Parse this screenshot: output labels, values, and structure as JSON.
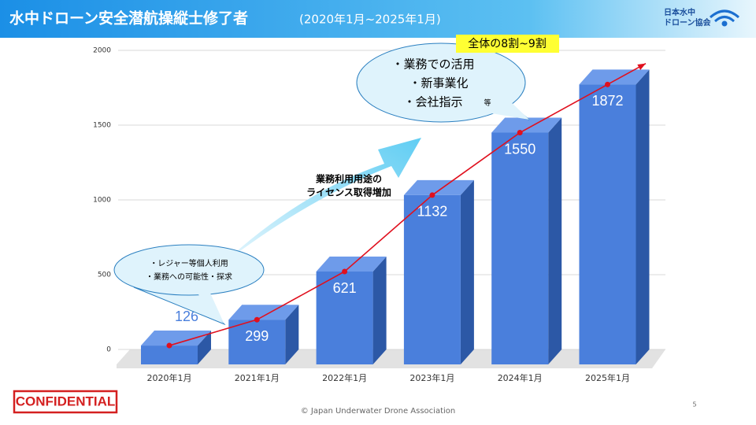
{
  "header": {
    "title": "水中ドローン安全潜航操縦士修了者",
    "subtitle": "(2020年1月~2025年1月)"
  },
  "logo": {
    "lines": [
      "日本水中",
      "ドローン協会"
    ]
  },
  "chart_data": {
    "type": "bar",
    "categories": [
      "2020年1月",
      "2021年1月",
      "2022年1月",
      "2023年1月",
      "2024年1月",
      "2025年1月"
    ],
    "values": [
      126,
      299,
      621,
      1132,
      1550,
      1872
    ],
    "color": "#4a7fdc",
    "line_color": "#e0101e",
    "ylim": [
      0,
      2000
    ],
    "yticks": [
      0,
      500,
      1000,
      1500,
      2000
    ],
    "grid": true,
    "annotations": {
      "callout_1": [
        "・レジャー等個人利用",
        "・業務への可能性・探求"
      ],
      "callout_2": [
        "・業務での活用",
        "・新事業化",
        "・会社指示"
      ],
      "callout_2_note": "等",
      "arrow_text": [
        "業務利用用途の",
        "ライセンス取得増加"
      ],
      "highlight": "全体の8割~9割"
    }
  },
  "footer": {
    "confidential": "CONFIDENTIAL",
    "copyright": "© Japan Underwater Drone Association",
    "page": "5"
  }
}
